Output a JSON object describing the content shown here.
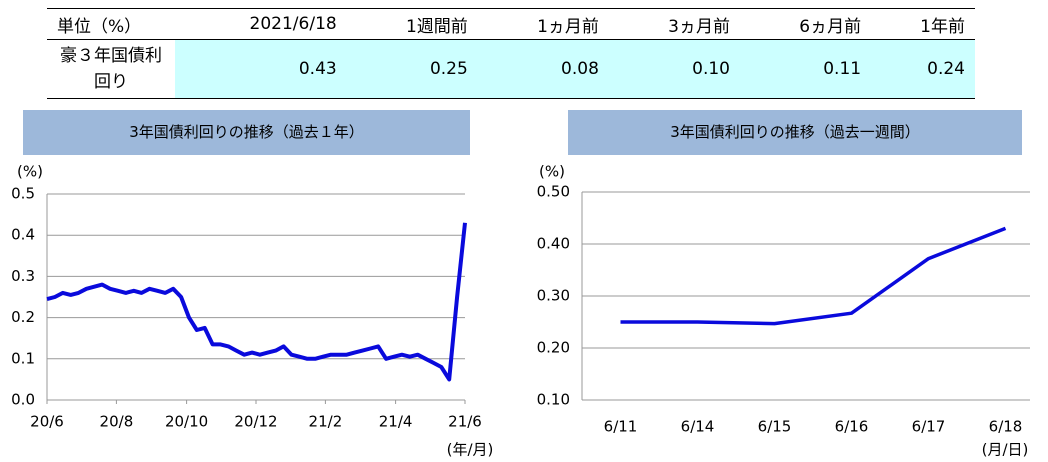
{
  "table": {
    "header": [
      "単位（%）",
      "2021/6/18",
      "1週間前",
      "1ヵ月前",
      "3ヵ月前",
      "6ヵ月前",
      "1年前"
    ],
    "rows": [
      [
        "豪３年国債利回り",
        "0.43",
        "0.25",
        "0.08",
        "0.10",
        "0.11",
        "0.24"
      ]
    ]
  },
  "chart_data": [
    {
      "type": "line",
      "title": "3年国債利回りの推移（過去１年）",
      "y_label": "(%)",
      "x_label": "(年/月)",
      "color": "#0a0adc",
      "grid": true,
      "values": [
        0.245,
        0.25,
        0.26,
        0.255,
        0.26,
        0.27,
        0.275,
        0.28,
        0.27,
        0.265,
        0.26,
        0.265,
        0.26,
        0.27,
        0.265,
        0.26,
        0.27,
        0.25,
        0.2,
        0.17,
        0.175,
        0.135,
        0.135,
        0.13,
        0.12,
        0.11,
        0.115,
        0.11,
        0.115,
        0.12,
        0.13,
        0.11,
        0.105,
        0.1,
        0.1,
        0.105,
        0.11,
        0.11,
        0.11,
        0.115,
        0.12,
        0.125,
        0.13,
        0.1,
        0.105,
        0.11,
        0.105,
        0.11,
        0.1,
        0.09,
        0.08,
        0.05,
        0.25,
        0.43
      ],
      "xlim": [
        0,
        53
      ],
      "xticks": [
        {
          "value": 0,
          "label": "20/6"
        },
        {
          "value": 8.8,
          "label": "20/8"
        },
        {
          "value": 17.7,
          "label": "20/10"
        },
        {
          "value": 26.5,
          "label": "20/12"
        },
        {
          "value": 35.3,
          "label": "21/2"
        },
        {
          "value": 44.2,
          "label": "21/4"
        },
        {
          "value": 53,
          "label": "21/6"
        }
      ],
      "ylim": [
        0,
        0.5
      ],
      "yticks": [
        {
          "value": 0,
          "label": "0.0"
        },
        0.1,
        0.2,
        0.3,
        0.4,
        0.5
      ]
    },
    {
      "type": "line",
      "title": "3年国債利回りの推移（過去一週間）",
      "y_label": "(%)",
      "x_label": "(月/日)",
      "color": "#0a0adc",
      "grid": true,
      "categories": [
        "6/11",
        "6/14",
        "6/15",
        "6/16",
        "6/17",
        "6/18"
      ],
      "values": [
        0.25,
        0.25,
        0.247,
        0.267,
        0.372,
        0.43
      ],
      "ylim": [
        0.1,
        0.5
      ],
      "yticks": [
        {
          "value": 0.1,
          "label": "0.10"
        },
        {
          "value": 0.2,
          "label": "0.20"
        },
        {
          "value": 0.3,
          "label": "0.30"
        },
        {
          "value": 0.4,
          "label": "0.40"
        },
        {
          "value": 0.5,
          "label": "0.50"
        }
      ]
    }
  ]
}
